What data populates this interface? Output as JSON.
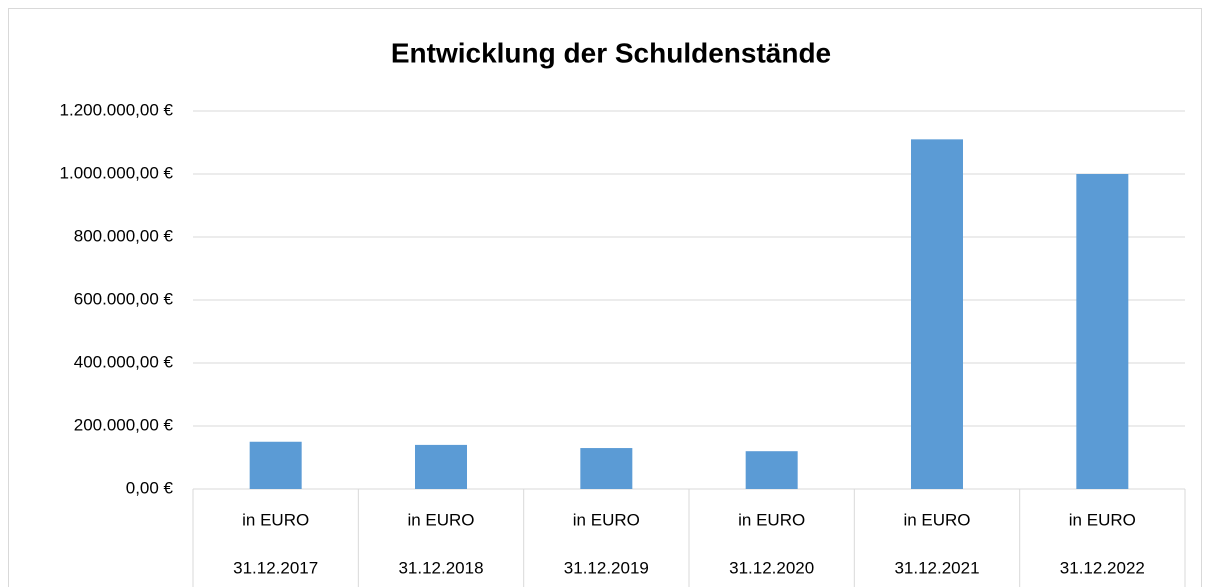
{
  "chart_data": {
    "type": "bar",
    "title": "Entwicklung der Schuldenstände",
    "categories": [
      [
        "in EURO",
        "31.12.2017"
      ],
      [
        "in EURO",
        "31.12.2018"
      ],
      [
        "in EURO",
        "31.12.2019"
      ],
      [
        "in EURO",
        "31.12.2020"
      ],
      [
        "in EURO",
        "31.12.2021"
      ],
      [
        "in EURO",
        "31.12.2022"
      ]
    ],
    "values": [
      150000,
      140000,
      130000,
      120000,
      1110000,
      1000000
    ],
    "color": "#5b9bd5",
    "ylim": [
      0,
      1200000
    ],
    "yticks": [
      {
        "value": 0,
        "label": "0,00 €"
      },
      {
        "value": 200000,
        "label": "200.000,00 €"
      },
      {
        "value": 400000,
        "label": "400.000,00 €"
      },
      {
        "value": 600000,
        "label": "600.000,00 €"
      },
      {
        "value": 800000,
        "label": "800.000,00 €"
      },
      {
        "value": 1000000,
        "label": "1.000.000,00 €"
      },
      {
        "value": 1200000,
        "label": "1.200.000,00 €"
      }
    ],
    "grid": true
  }
}
